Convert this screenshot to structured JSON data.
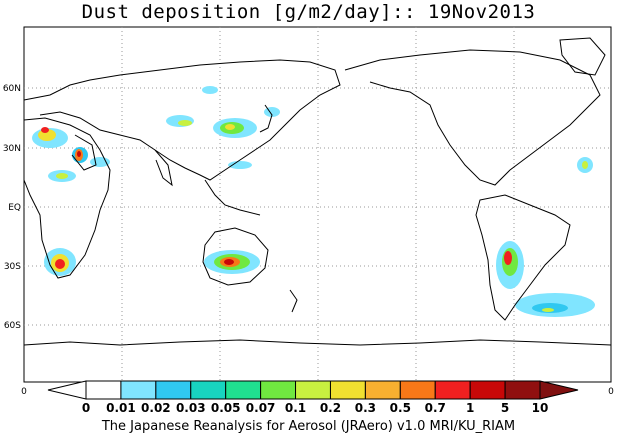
{
  "title": "Dust deposition [g/m2/day]:: 19Nov2013",
  "footer": "The Japanese Reanalysis for Aerosol (JRAero) v1.0 MRI/KU_RIAM",
  "latitude_labels": [
    "60N",
    "30N",
    "EQ",
    "30S",
    "60S"
  ],
  "axis_edge_left": "0",
  "axis_edge_right": "0",
  "colorbar": {
    "labels": [
      "0",
      "0.01",
      "0.02",
      "0.03",
      "0.05",
      "0.07",
      "0.1",
      "0.2",
      "0.3",
      "0.5",
      "0.7",
      "1",
      "5",
      "10"
    ],
    "colors": [
      "#ffffff",
      "#ffffff",
      "#80e5ff",
      "#30c8f0",
      "#18d4c0",
      "#20e090",
      "#70e840",
      "#c8f040",
      "#f0e030",
      "#f8b030",
      "#f87818",
      "#f02020",
      "#c80808",
      "#901010",
      "#801010"
    ]
  }
}
